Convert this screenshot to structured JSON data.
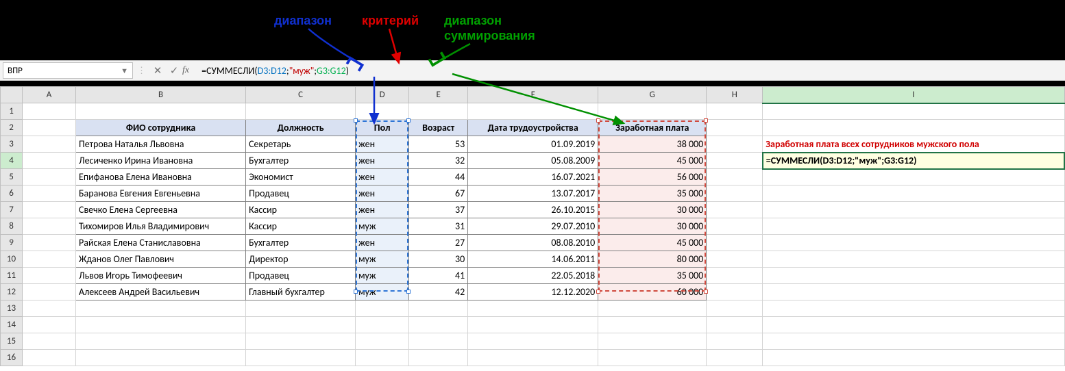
{
  "annotations": {
    "range_label": "диапазон",
    "criteria_label": "критерий",
    "sum_range_label1": "диапазон",
    "sum_range_label2": "суммирования",
    "colors": {
      "blue": "#1030d0",
      "red": "#e00000",
      "green": "#009000"
    }
  },
  "namebox": "ВПР",
  "formula": {
    "prefix": "=СУММЕСЛИ(",
    "range": "D3:D12",
    "sep1": ";",
    "criteria": "\"муж\"",
    "sep2": ";",
    "sum_range": "G3:G12",
    "suffix": ")"
  },
  "columns": [
    "A",
    "B",
    "C",
    "D",
    "E",
    "F",
    "G",
    "H",
    "I"
  ],
  "headers_row": {
    "B": "ФИО сотрудника",
    "C": "Должность",
    "D": "Пол",
    "E": "Возраст",
    "F": "Дата трудоустройства",
    "G": "Заработная плата"
  },
  "rows": [
    {
      "n": "3",
      "B": "Петрова Наталья Львовна",
      "C": "Секретарь",
      "D": "жен",
      "E": "53",
      "F": "01.09.2019",
      "G": "38 000"
    },
    {
      "n": "4",
      "B": "Лесиченко Ирина Ивановна",
      "C": "Бухгалтер",
      "D": "жен",
      "E": "32",
      "F": "05.08.2009",
      "G": "45 000"
    },
    {
      "n": "5",
      "B": "Епифанова Елена Ивановна",
      "C": "Экономист",
      "D": "жен",
      "E": "44",
      "F": "16.07.2021",
      "G": "56 000"
    },
    {
      "n": "6",
      "B": "Баранова Евгения Евгеньевна",
      "C": "Продавец",
      "D": "жен",
      "E": "67",
      "F": "13.07.2017",
      "G": "35 000"
    },
    {
      "n": "7",
      "B": "Свечко Елена Сергеевна",
      "C": "Кассир",
      "D": "жен",
      "E": "37",
      "F": "26.10.2015",
      "G": "30 000"
    },
    {
      "n": "8",
      "B": "Тихомиров Илья Владимирович",
      "C": "Кассир",
      "D": "муж",
      "E": "31",
      "F": "29.07.2010",
      "G": "30 000"
    },
    {
      "n": "9",
      "B": "Райская Елена Станиславовна",
      "C": "Бухгалтер",
      "D": "жен",
      "E": "27",
      "F": "08.08.2010",
      "G": "45 000"
    },
    {
      "n": "10",
      "B": "Жданов Олег Павлович",
      "C": "Директор",
      "D": "муж",
      "E": "30",
      "F": "14.06.2011",
      "G": "80 000"
    },
    {
      "n": "11",
      "B": "Львов Игорь Тимофеевич",
      "C": "Продавец",
      "D": "муж",
      "E": "41",
      "F": "22.05.2018",
      "G": "35 000"
    },
    {
      "n": "12",
      "B": "Алексеев Андрей Васильевич",
      "C": "Главный бухгалтер",
      "D": "муж",
      "E": "42",
      "F": "12.12.2020",
      "G": "60 000"
    }
  ],
  "info": {
    "title": "Заработная плата всех сотрудников мужского пола",
    "formula_text": "=СУММЕСЛИ(D3:D12;\"муж\";G3:G12)"
  },
  "empty_rows": [
    "1",
    "13",
    "14",
    "15",
    "16"
  ],
  "row_header_2": "2",
  "styling": {
    "header_bg": "#d9e1f2",
    "range_d_bg": "#eaf1fa",
    "range_g_bg": "#fbeceb",
    "range_d_border": "#2e75d6",
    "range_g_border": "#d04a3e",
    "active_cell_bg": "#ffffe1",
    "active_cell_border": "#217346"
  }
}
